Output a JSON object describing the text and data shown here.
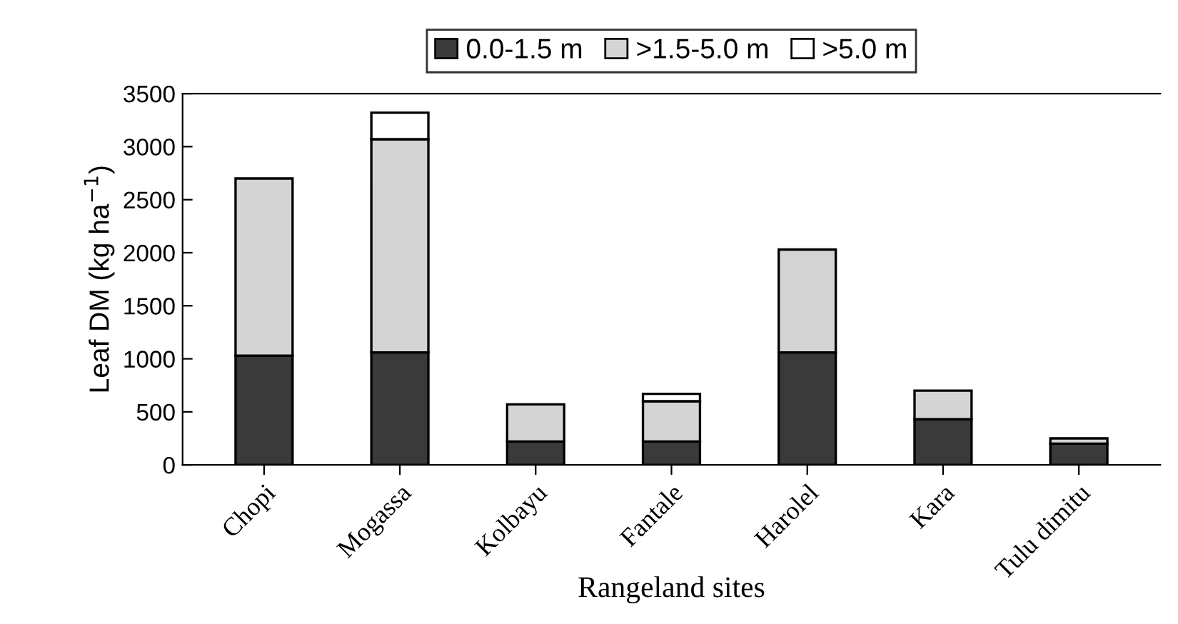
{
  "chart_data": {
    "type": "bar",
    "stacked": true,
    "categories": [
      "Chopi",
      "Mogassa",
      "Kolbayu",
      "Fantale",
      "Harolel",
      "Kara",
      "Tulu dimitu"
    ],
    "series": [
      {
        "name": "0.0-1.5 m",
        "color": "#3a3a3a",
        "values": [
          1030,
          1060,
          220,
          220,
          1060,
          430,
          200
        ]
      },
      {
        "name": ">1.5-5.0 m",
        "color": "#d4d4d4",
        "values": [
          1670,
          2010,
          350,
          380,
          970,
          270,
          50
        ]
      },
      {
        "name": ">5.0 m",
        "color": "#ffffff",
        "values": [
          0,
          250,
          0,
          70,
          0,
          0,
          0
        ]
      }
    ],
    "ylim": [
      0,
      3500
    ],
    "yticks": [
      0,
      500,
      1000,
      1500,
      2000,
      2500,
      3000,
      3500
    ],
    "ylabel": "Leaf DM (kg ha$^{−1}$)",
    "xlabel": "Rangeland sites",
    "legend": "top",
    "grid": false
  }
}
